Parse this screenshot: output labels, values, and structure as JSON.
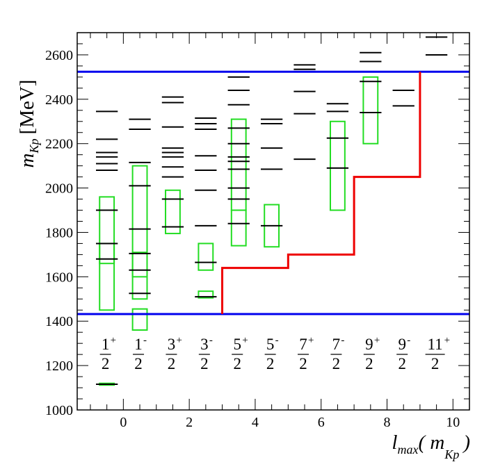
{
  "chart_data": {
    "type": "scatter",
    "xlabel_main": "l",
    "xlabel_sub": "max",
    "xlabel_open": "( m",
    "xlabel_sub2": "Kp",
    "xlabel_close": ")",
    "ylabel_main": "m",
    "ylabel_sub": "Kp",
    "ylabel_unit": "[MeV]",
    "xlim": [
      -1.4,
      10.5
    ],
    "ylim": [
      1000,
      2700
    ],
    "xticks": [
      0,
      2,
      4,
      6,
      8,
      10
    ],
    "yticks": [
      1000,
      1200,
      1400,
      1600,
      1800,
      2000,
      2200,
      2400,
      2600
    ],
    "xtick_labels": [
      "0",
      "2",
      "4",
      "6",
      "8",
      "10"
    ],
    "ytick_labels": [
      "1000",
      "1200",
      "1400",
      "1600",
      "1800",
      "2000",
      "2200",
      "2400",
      "2600"
    ],
    "thresholds": [
      1432,
      2524
    ],
    "threshold_color": "#0000ee",
    "lmax_step_color": "#ee0000",
    "lmax_step": [
      [
        3,
        1432
      ],
      [
        3,
        1640
      ],
      [
        5,
        1640
      ],
      [
        5,
        1700
      ],
      [
        7,
        1700
      ],
      [
        7,
        2050
      ],
      [
        9,
        2050
      ],
      [
        9,
        2524
      ]
    ],
    "box_color": "#22dd22",
    "levels": [
      {
        "jp": "1/2+",
        "num": "1",
        "den": "2",
        "parity": "+",
        "x": -0.5,
        "masses": [
          1116,
          1680,
          1750,
          1900,
          2080,
          2110,
          2140,
          2160,
          2220,
          2345
        ],
        "boxes": [
          [
            1112,
            1120
          ],
          [
            1450,
            1960
          ],
          [
            1660,
            1750
          ]
        ]
      },
      {
        "jp": "1/2-",
        "num": "1",
        "den": "2",
        "parity": "-",
        "x": 0.5,
        "masses": [
          1525,
          1630,
          1705,
          1815,
          2010,
          2115,
          2265,
          2310
        ],
        "boxes": [
          [
            1360,
            1455
          ],
          [
            1500,
            2100
          ],
          [
            1600,
            1710
          ]
        ]
      },
      {
        "jp": "3/2+",
        "num": "3",
        "den": "2",
        "parity": "+",
        "x": 1.5,
        "masses": [
          1825,
          1950,
          2050,
          2095,
          2140,
          2160,
          2180,
          2275,
          2385,
          2410
        ],
        "boxes": [
          [
            1795,
            1990
          ]
        ]
      },
      {
        "jp": "3/2-",
        "num": "3",
        "den": "2",
        "parity": "-",
        "x": 2.5,
        "masses": [
          1510,
          1665,
          1830,
          1990,
          2080,
          2145,
          2265,
          2290,
          2315
        ],
        "boxes": [
          [
            1505,
            1535
          ],
          [
            1630,
            1750
          ]
        ]
      },
      {
        "jp": "5/2+",
        "num": "5",
        "den": "2",
        "parity": "+",
        "x": 3.5,
        "masses": [
          1840,
          1950,
          2000,
          2085,
          2120,
          2140,
          2200,
          2270,
          2375,
          2440,
          2500
        ],
        "boxes": [
          [
            1740,
            1900
          ],
          [
            1900,
            2310
          ]
        ]
      },
      {
        "jp": "5/2-",
        "num": "5",
        "den": "2",
        "parity": "-",
        "x": 4.5,
        "masses": [
          1830,
          2085,
          2180,
          2290,
          2310
        ],
        "boxes": [
          [
            1735,
            1925
          ]
        ]
      },
      {
        "jp": "7/2+",
        "num": "7",
        "den": "2",
        "parity": "+",
        "x": 5.5,
        "masses": [
          2130,
          2335,
          2435,
          2535,
          2555
        ],
        "boxes": []
      },
      {
        "jp": "7/2-",
        "num": "7",
        "den": "2",
        "parity": "-",
        "x": 6.5,
        "masses": [
          2090,
          2225,
          2345,
          2380
        ],
        "boxes": [
          [
            1900,
            2300
          ]
        ]
      },
      {
        "jp": "9/2+",
        "num": "9",
        "den": "2",
        "parity": "+",
        "x": 7.5,
        "masses": [
          2340,
          2480,
          2570,
          2610
        ],
        "boxes": [
          [
            2200,
            2500
          ]
        ]
      },
      {
        "jp": "9/2-",
        "num": "9",
        "den": "2",
        "parity": "-",
        "x": 8.5,
        "masses": [
          2370,
          2440
        ],
        "boxes": []
      },
      {
        "jp": "11/2+",
        "num": "11",
        "den": "2",
        "parity": "+",
        "x": 9.5,
        "masses": [
          2600,
          2680
        ],
        "boxes": []
      }
    ]
  }
}
